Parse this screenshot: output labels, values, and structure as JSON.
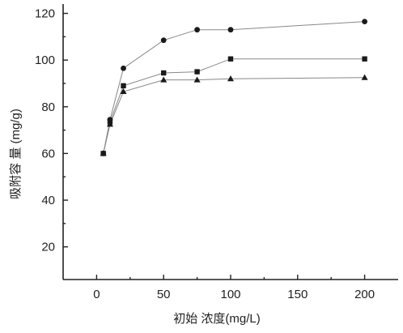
{
  "chart_data": {
    "type": "line",
    "title": "",
    "xlabel": "初始 浓度(mg/L)",
    "ylabel": "吸附容 量 (mg/g)",
    "xlim": [
      -25,
      225
    ],
    "ylim": [
      6,
      124
    ],
    "xticks": [
      0,
      50,
      100,
      150,
      200
    ],
    "yticks": [
      20,
      40,
      60,
      80,
      100,
      120
    ],
    "grid": false,
    "legend": "none",
    "line_color": "#888888",
    "marker_color": "#1a1a1a",
    "series": [
      {
        "marker": "circle",
        "x": [
          5,
          10,
          20,
          50,
          75,
          100,
          200
        ],
        "y": [
          60,
          74.5,
          96.5,
          108.5,
          113,
          113,
          116.5
        ]
      },
      {
        "marker": "square",
        "x": [
          5,
          10,
          20,
          50,
          75,
          100,
          200
        ],
        "y": [
          60,
          73.5,
          89,
          94.5,
          95,
          100.5,
          100.5
        ]
      },
      {
        "marker": "triangle",
        "x": [
          5,
          10,
          20,
          50,
          75,
          100,
          200
        ],
        "y": [
          60,
          72.5,
          86.5,
          91.5,
          91.5,
          92,
          92.5
        ]
      }
    ]
  }
}
